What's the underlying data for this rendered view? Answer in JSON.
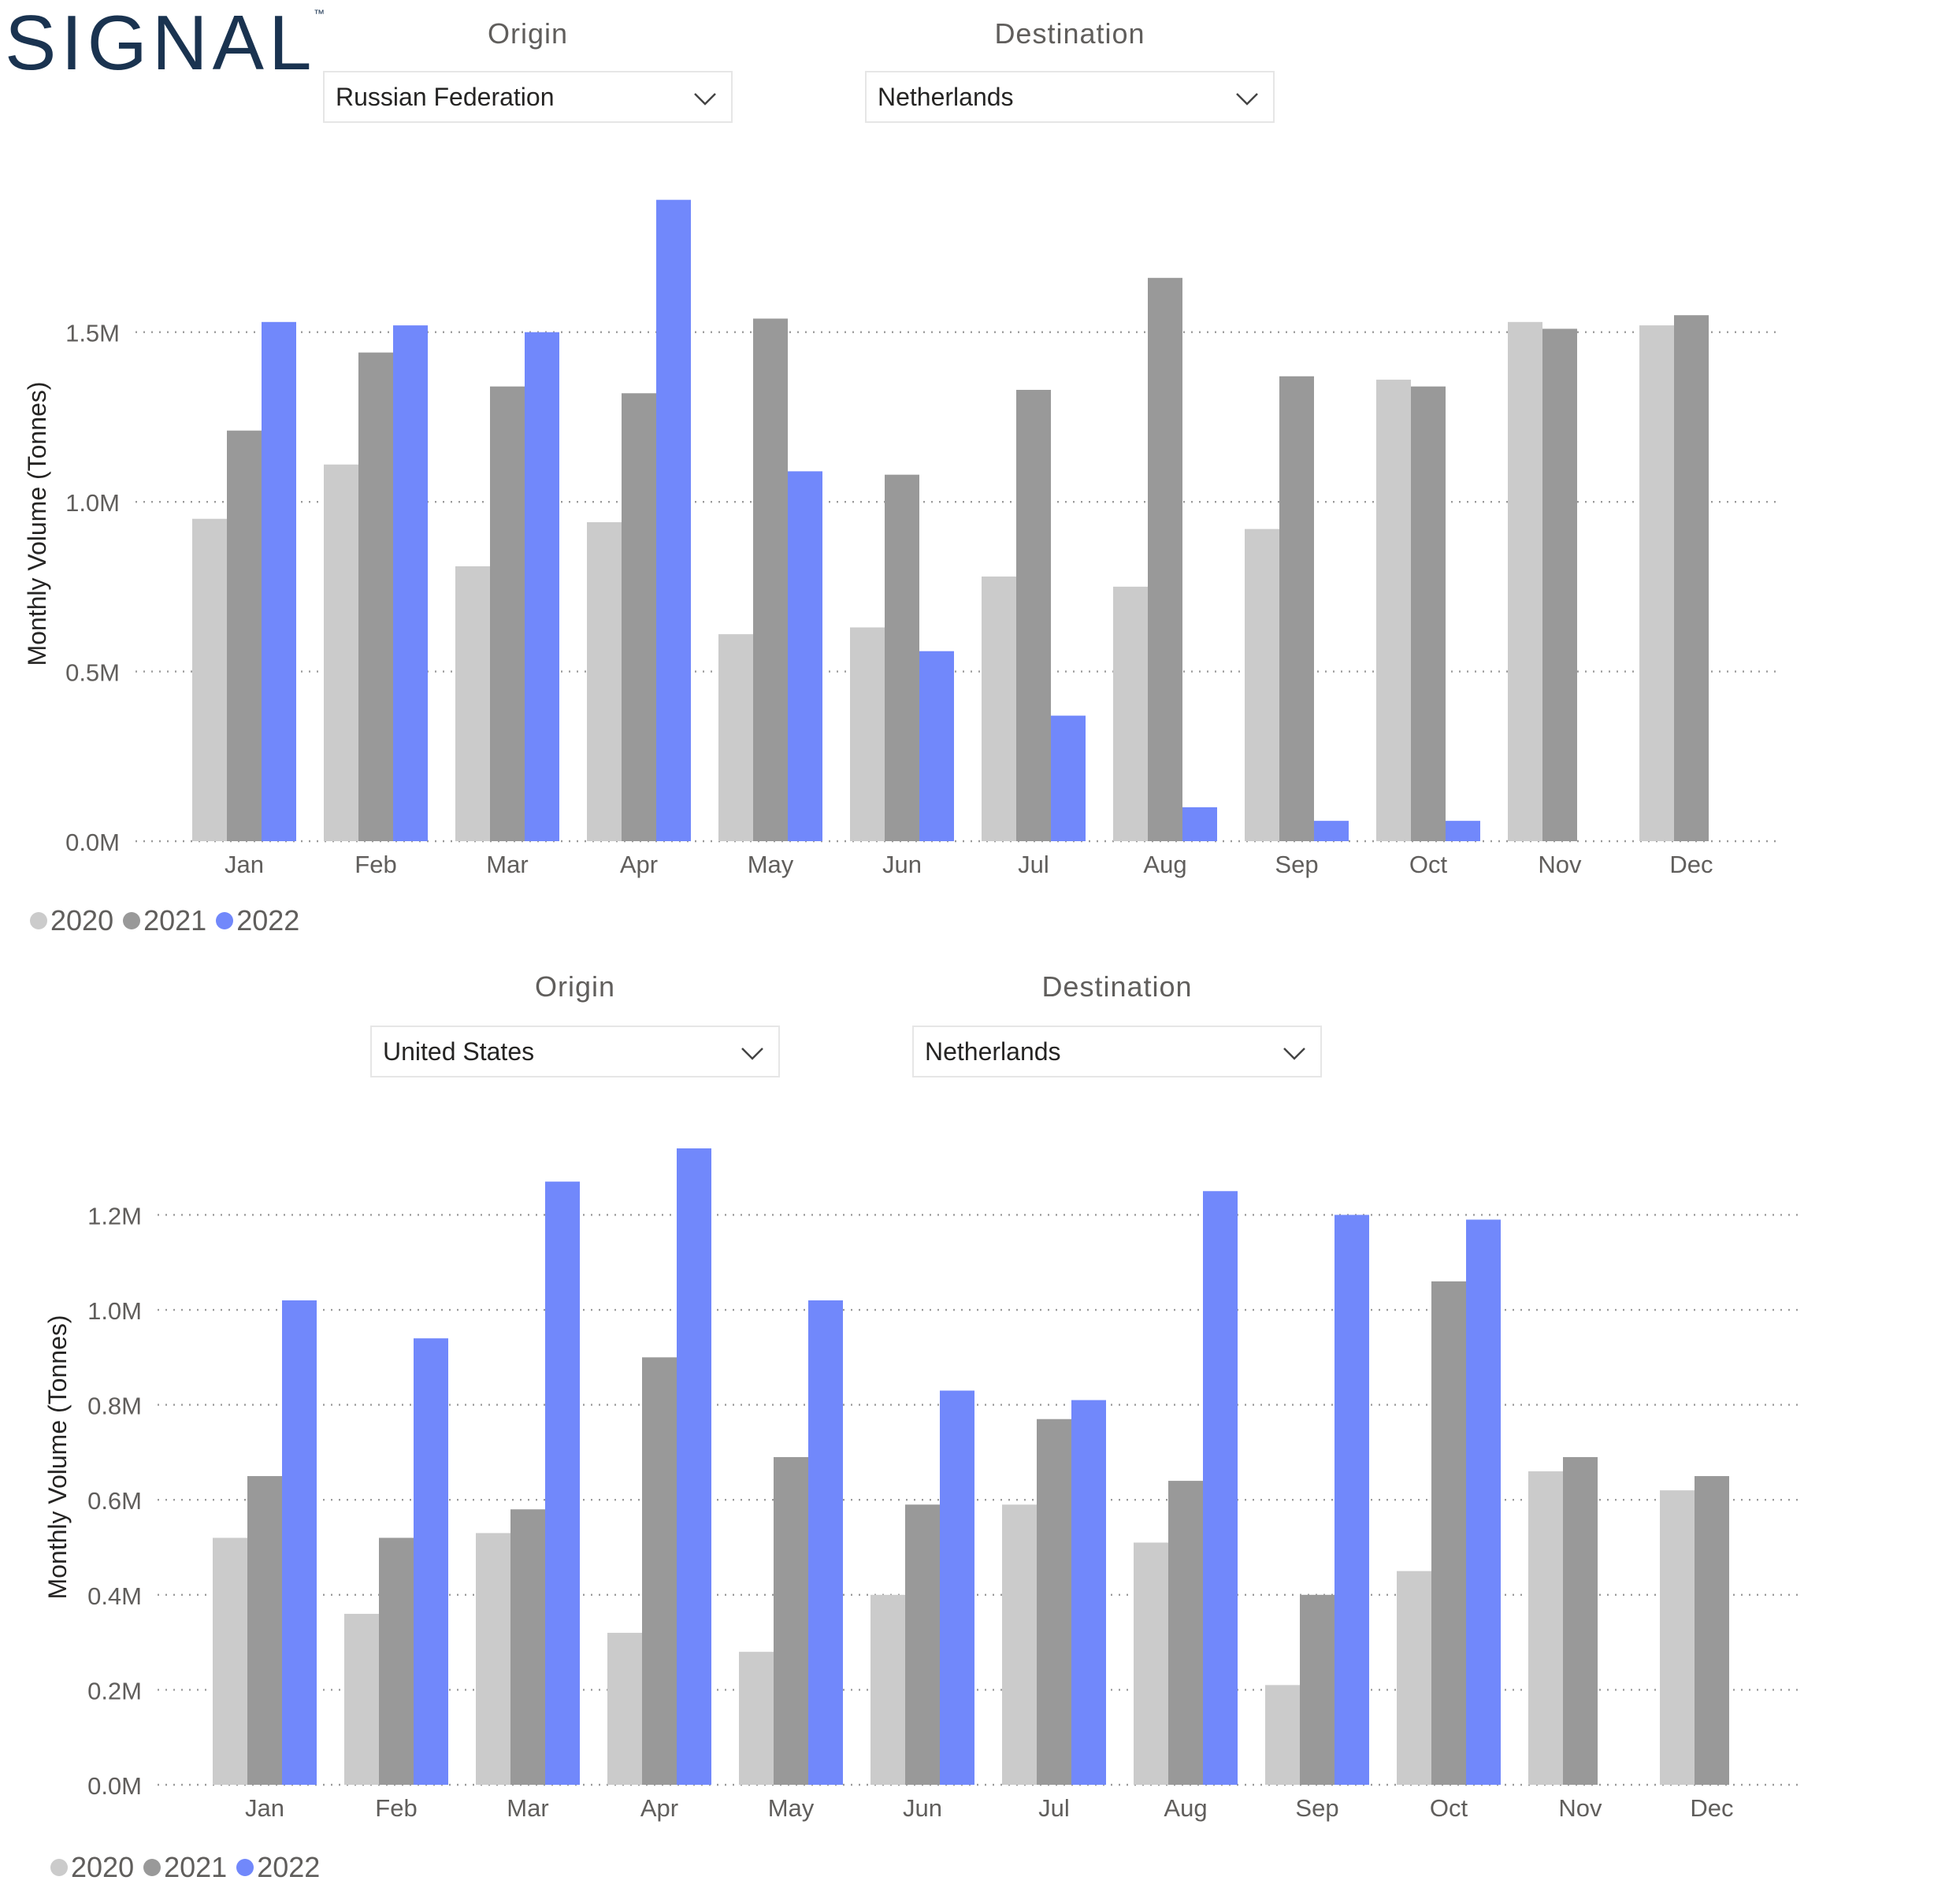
{
  "brand": {
    "logo_text": "SIGNAL",
    "trademark": "™",
    "color": "#1a3350"
  },
  "colors": {
    "y2020": "#cbcbcb",
    "y2021": "#999999",
    "y2022": "#7188fb"
  },
  "panels": [
    {
      "origin_label": "Origin",
      "origin_value": "Russian Federation",
      "destination_label": "Destination",
      "destination_value": "Netherlands",
      "legend": [
        "2020",
        "2021",
        "2022"
      ]
    },
    {
      "origin_label": "Origin",
      "origin_value": "United States",
      "destination_label": "Destination",
      "destination_value": "Netherlands",
      "legend": [
        "2020",
        "2021",
        "2022"
      ]
    }
  ],
  "chart_data": [
    {
      "type": "bar",
      "title": "",
      "xlabel": "",
      "ylabel": "Monthly Volume (Tonnes)",
      "categories": [
        "Jan",
        "Feb",
        "Mar",
        "Apr",
        "May",
        "Jun",
        "Jul",
        "Aug",
        "Sep",
        "Oct",
        "Nov",
        "Dec"
      ],
      "yticks": [
        0,
        0.5,
        1.0,
        1.5
      ],
      "ytick_labels": [
        "0.0M",
        "0.5M",
        "1.0M",
        "1.5M"
      ],
      "ylim": [
        0,
        1.88
      ],
      "grid": "dotted",
      "legend_position": "bottom-left",
      "series": [
        {
          "name": "2020",
          "values": [
            0.95,
            1.11,
            0.81,
            0.94,
            0.61,
            0.63,
            0.78,
            0.75,
            0.92,
            1.36,
            1.53,
            1.52
          ]
        },
        {
          "name": "2021",
          "values": [
            1.21,
            1.44,
            1.34,
            1.32,
            1.54,
            1.08,
            1.33,
            1.66,
            1.37,
            1.34,
            1.51,
            1.55
          ]
        },
        {
          "name": "2022",
          "values": [
            1.53,
            1.52,
            1.5,
            1.89,
            1.09,
            0.56,
            0.37,
            0.1,
            0.06,
            0.06,
            null,
            null
          ]
        }
      ]
    },
    {
      "type": "bar",
      "title": "",
      "xlabel": "",
      "ylabel": "Monthly Volume (Tonnes)",
      "categories": [
        "Jan",
        "Feb",
        "Mar",
        "Apr",
        "May",
        "Jun",
        "Jul",
        "Aug",
        "Sep",
        "Oct",
        "Nov",
        "Dec"
      ],
      "yticks": [
        0,
        0.2,
        0.4,
        0.6,
        0.8,
        1.0,
        1.2
      ],
      "ytick_labels": [
        "0.0M",
        "0.2M",
        "0.4M",
        "0.6M",
        "0.8M",
        "1.0M",
        "1.2M"
      ],
      "ylim": [
        0,
        1.34
      ],
      "grid": "dotted",
      "legend_position": "bottom-left",
      "series": [
        {
          "name": "2020",
          "values": [
            0.52,
            0.36,
            0.53,
            0.32,
            0.28,
            0.4,
            0.59,
            0.51,
            0.21,
            0.45,
            0.66,
            0.62
          ]
        },
        {
          "name": "2021",
          "values": [
            0.65,
            0.52,
            0.58,
            0.9,
            0.69,
            0.59,
            0.77,
            0.64,
            0.4,
            1.06,
            0.69,
            0.65
          ]
        },
        {
          "name": "2022",
          "values": [
            1.02,
            0.94,
            1.27,
            1.34,
            1.02,
            0.83,
            0.81,
            1.25,
            1.2,
            1.19,
            null,
            null
          ]
        }
      ]
    }
  ]
}
